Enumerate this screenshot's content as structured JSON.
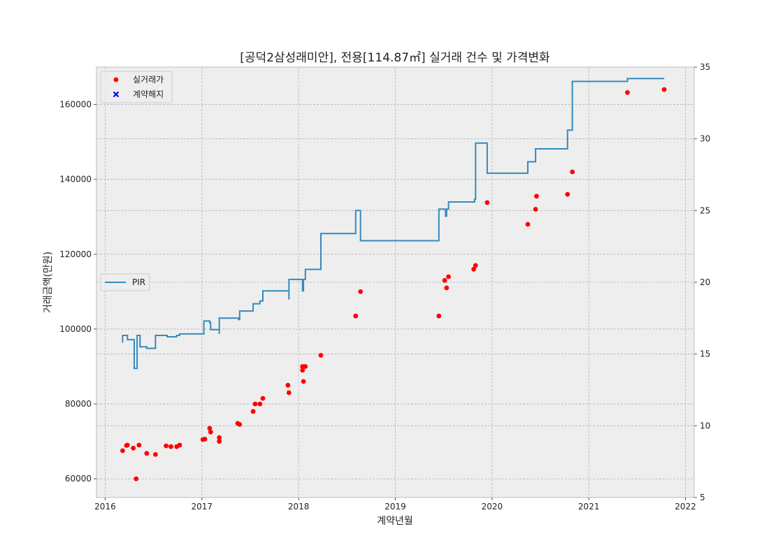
{
  "chart_data": {
    "type": "scatter+step",
    "title": "[공덕2삼성래미안], 전용[114.87㎡] 실거래 건수 및 가격변화",
    "xlabel": "계약년월",
    "ylabel": "거래금액(만원)",
    "xlim": [
      2015.91,
      2022.09
    ],
    "ylim": [
      55000,
      170000
    ],
    "y2lim": [
      5,
      35
    ],
    "x_ticks": [
      2016,
      2017,
      2018,
      2019,
      2020,
      2021,
      2022
    ],
    "x_tick_labels": [
      "2016",
      "2017",
      "2018",
      "2019",
      "2020",
      "2021",
      "2022"
    ],
    "y_ticks": [
      60000,
      80000,
      100000,
      120000,
      140000,
      160000
    ],
    "y_tick_labels": [
      "60000",
      "80000",
      "100000",
      "120000",
      "140000",
      "160000"
    ],
    "y2_ticks": [
      5,
      10,
      15,
      20,
      25,
      30,
      35
    ],
    "y2_tick_labels": [
      "5",
      "10",
      "15",
      "20",
      "25",
      "30",
      "35"
    ],
    "grid": true,
    "legend_top": {
      "placement": "upper-left",
      "entries": [
        {
          "label": "실거래가",
          "marker": "circle",
          "color": "#ff0000"
        },
        {
          "label": "계약해지",
          "marker": "x",
          "color": "#0000ff"
        }
      ]
    },
    "legend_pir": {
      "placement": "center-left",
      "entries": [
        {
          "label": "PIR",
          "marker": "line",
          "color": "#348abd"
        }
      ]
    },
    "series": [
      {
        "name": "실거래가",
        "type": "scatter",
        "axis": "left",
        "color": "#ff0000",
        "points": [
          [
            2016.18,
            67500
          ],
          [
            2016.22,
            68900
          ],
          [
            2016.23,
            69000
          ],
          [
            2016.29,
            68200
          ],
          [
            2016.32,
            60000
          ],
          [
            2016.35,
            69000
          ],
          [
            2016.43,
            66800
          ],
          [
            2016.52,
            66500
          ],
          [
            2016.63,
            68800
          ],
          [
            2016.68,
            68600
          ],
          [
            2016.74,
            68600
          ],
          [
            2016.77,
            69000
          ],
          [
            2017.01,
            70500
          ],
          [
            2017.03,
            70600
          ],
          [
            2017.08,
            73500
          ],
          [
            2017.09,
            72500
          ],
          [
            2017.18,
            71000
          ],
          [
            2017.18,
            70000
          ],
          [
            2017.37,
            74800
          ],
          [
            2017.39,
            74500
          ],
          [
            2017.53,
            78000
          ],
          [
            2017.55,
            80000
          ],
          [
            2017.6,
            80000
          ],
          [
            2017.63,
            81500
          ],
          [
            2017.89,
            85000
          ],
          [
            2017.9,
            83000
          ],
          [
            2018.04,
            90000
          ],
          [
            2018.04,
            89000
          ],
          [
            2018.05,
            86000
          ],
          [
            2018.07,
            90000
          ],
          [
            2018.23,
            93000
          ],
          [
            2018.59,
            103500
          ],
          [
            2018.64,
            110000
          ],
          [
            2019.45,
            103500
          ],
          [
            2019.51,
            113000
          ],
          [
            2019.53,
            111000
          ],
          [
            2019.55,
            114000
          ],
          [
            2019.81,
            116000
          ],
          [
            2019.83,
            117000
          ],
          [
            2019.95,
            133800
          ],
          [
            2020.37,
            128000
          ],
          [
            2020.45,
            132000
          ],
          [
            2020.46,
            135500
          ],
          [
            2020.78,
            136000
          ],
          [
            2020.83,
            142000
          ],
          [
            2021.4,
            163200
          ],
          [
            2021.78,
            164000
          ]
        ]
      },
      {
        "name": "PIR",
        "type": "step",
        "axis": "right",
        "color": "#348abd",
        "points": [
          [
            2016.18,
            15.8
          ],
          [
            2016.18,
            16.3
          ],
          [
            2016.23,
            16.3
          ],
          [
            2016.23,
            16.0
          ],
          [
            2016.3,
            16.0
          ],
          [
            2016.3,
            14.0
          ],
          [
            2016.33,
            14.0
          ],
          [
            2016.33,
            16.3
          ],
          [
            2016.36,
            16.3
          ],
          [
            2016.36,
            15.5
          ],
          [
            2016.43,
            15.5
          ],
          [
            2016.43,
            15.4
          ],
          [
            2016.52,
            15.4
          ],
          [
            2016.52,
            16.3
          ],
          [
            2016.64,
            16.3
          ],
          [
            2016.64,
            16.2
          ],
          [
            2016.74,
            16.2
          ],
          [
            2016.74,
            16.3
          ],
          [
            2016.77,
            16.3
          ],
          [
            2016.77,
            16.4
          ],
          [
            2017.02,
            16.4
          ],
          [
            2017.02,
            17.3
          ],
          [
            2017.08,
            17.3
          ],
          [
            2017.08,
            17.2
          ],
          [
            2017.09,
            17.2
          ],
          [
            2017.09,
            16.7
          ],
          [
            2017.18,
            16.7
          ],
          [
            2017.18,
            16.4
          ],
          [
            2017.18,
            16.4
          ],
          [
            2017.18,
            17.5
          ],
          [
            2017.38,
            17.5
          ],
          [
            2017.38,
            17.4
          ],
          [
            2017.39,
            17.4
          ],
          [
            2017.39,
            18.0
          ],
          [
            2017.53,
            18.0
          ],
          [
            2017.53,
            18.5
          ],
          [
            2017.6,
            18.5
          ],
          [
            2017.6,
            18.7
          ],
          [
            2017.63,
            18.7
          ],
          [
            2017.63,
            19.4
          ],
          [
            2017.9,
            19.4
          ],
          [
            2017.9,
            18.8
          ],
          [
            2017.9,
            18.8
          ],
          [
            2017.9,
            20.2
          ],
          [
            2018.04,
            20.2
          ],
          [
            2018.04,
            19.4
          ],
          [
            2018.05,
            19.4
          ],
          [
            2018.05,
            20.2
          ],
          [
            2018.07,
            20.2
          ],
          [
            2018.07,
            20.9
          ],
          [
            2018.23,
            20.9
          ],
          [
            2018.23,
            23.4
          ],
          [
            2018.59,
            23.4
          ],
          [
            2018.59,
            25.0
          ],
          [
            2018.64,
            25.0
          ],
          [
            2018.64,
            22.9
          ],
          [
            2019.45,
            22.9
          ],
          [
            2019.45,
            25.1
          ],
          [
            2019.52,
            25.1
          ],
          [
            2019.52,
            24.6
          ],
          [
            2019.53,
            24.6
          ],
          [
            2019.53,
            25.1
          ],
          [
            2019.55,
            25.1
          ],
          [
            2019.55,
            25.6
          ],
          [
            2019.82,
            25.6
          ],
          [
            2019.82,
            25.8
          ],
          [
            2019.83,
            25.8
          ],
          [
            2019.83,
            29.7
          ],
          [
            2019.95,
            29.7
          ],
          [
            2019.95,
            27.6
          ],
          [
            2020.37,
            27.6
          ],
          [
            2020.37,
            28.4
          ],
          [
            2020.45,
            28.4
          ],
          [
            2020.45,
            29.3
          ],
          [
            2020.78,
            29.3
          ],
          [
            2020.78,
            30.6
          ],
          [
            2020.83,
            30.6
          ],
          [
            2020.83,
            34.0
          ],
          [
            2021.4,
            34.0
          ],
          [
            2021.4,
            34.2
          ],
          [
            2021.78,
            34.2
          ]
        ]
      }
    ]
  }
}
